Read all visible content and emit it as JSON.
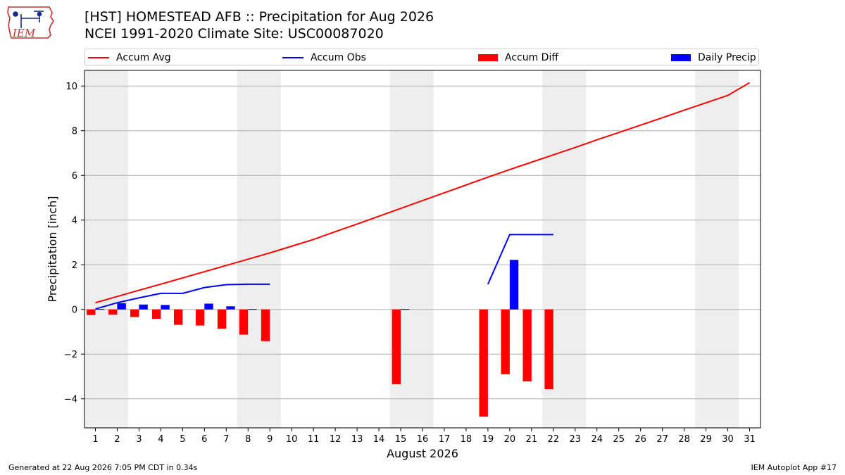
{
  "header": {
    "logo_text": "IEM",
    "title_line1": "[HST] HOMESTEAD AFB :: Precipitation for Aug 2026",
    "title_line2": "NCEI 1991-2020 Climate Site: USC00087020"
  },
  "legend": {
    "accum_avg": "Accum Avg",
    "accum_obs": "Accum Obs",
    "accum_diff": "Accum Diff",
    "daily_precip": "Daily Precip"
  },
  "footer": {
    "left": "Generated at 22 Aug 2026 7:05 PM CDT in 0.34s",
    "right": "IEM Autoplot App #17"
  },
  "colors": {
    "accum_avg": "#ff0000",
    "accum_obs": "#0000ff",
    "accum_diff": "#ff0000",
    "daily_precip": "#0000ff",
    "weekend_shade": "#eeeeee",
    "grid": "#b0b0b0"
  },
  "chart_data": {
    "type": "bar",
    "title": "[HST] HOMESTEAD AFB :: Precipitation for Aug 2026",
    "subtitle": "NCEI 1991-2020 Climate Site: USC00087020",
    "xlabel": "August 2026",
    "ylabel": "Precipitation [inch]",
    "xlim": [
      0.5,
      31.5
    ],
    "ylim": [
      -5.3,
      10.7
    ],
    "yticks": [
      -4,
      -2,
      0,
      2,
      4,
      6,
      8,
      10
    ],
    "ytick_labels": [
      "−4",
      "−2",
      "0",
      "2",
      "4",
      "6",
      "8",
      "10"
    ],
    "xticks": [
      1,
      2,
      3,
      4,
      5,
      6,
      7,
      8,
      9,
      10,
      11,
      12,
      13,
      14,
      15,
      16,
      17,
      18,
      19,
      20,
      21,
      22,
      23,
      24,
      25,
      26,
      27,
      28,
      29,
      30,
      31
    ],
    "grid": "horizontal",
    "legend_position": "top",
    "weekend_spans": [
      [
        0.5,
        2.5
      ],
      [
        7.5,
        9.5
      ],
      [
        14.5,
        16.5
      ],
      [
        21.5,
        23.5
      ],
      [
        28.5,
        30.5
      ]
    ],
    "series": [
      {
        "name": "Accum Avg",
        "kind": "line",
        "x": [
          1,
          2,
          3,
          4,
          5,
          6,
          7,
          8,
          9,
          10,
          11,
          12,
          13,
          14,
          15,
          16,
          17,
          18,
          19,
          20,
          21,
          22,
          23,
          24,
          25,
          26,
          27,
          28,
          29,
          30,
          31
        ],
        "values": [
          0.3,
          0.58,
          0.86,
          1.13,
          1.41,
          1.69,
          1.97,
          2.25,
          2.53,
          2.83,
          3.13,
          3.48,
          3.82,
          4.17,
          4.52,
          4.87,
          5.22,
          5.57,
          5.92,
          6.26,
          6.59,
          6.92,
          7.25,
          7.59,
          7.92,
          8.25,
          8.58,
          8.92,
          9.25,
          9.58,
          10.15
        ]
      },
      {
        "name": "Accum Obs",
        "kind": "line",
        "x": [
          1,
          2,
          3,
          4,
          5,
          6,
          7,
          8,
          9,
          19,
          20,
          21,
          22
        ],
        "values": [
          0.02,
          0.3,
          0.52,
          0.72,
          0.72,
          0.98,
          1.11,
          1.13,
          1.13,
          1.13,
          3.35,
          3.35,
          3.35
        ],
        "segments": [
          [
            1,
            9
          ],
          [
            19,
            22
          ]
        ]
      },
      {
        "name": "Accum Diff",
        "kind": "bar",
        "x": [
          1,
          2,
          3,
          4,
          5,
          6,
          7,
          8,
          9,
          15,
          19,
          20,
          21,
          22
        ],
        "values": [
          -0.25,
          -0.23,
          -0.34,
          -0.42,
          -0.69,
          -0.72,
          -0.86,
          -1.13,
          -1.42,
          -3.35,
          -4.8,
          -2.9,
          -3.22,
          -3.57
        ]
      },
      {
        "name": "Daily Precip",
        "kind": "bar",
        "x": [
          1,
          2,
          3,
          4,
          5,
          6,
          7,
          8,
          9,
          15,
          19,
          20,
          21,
          22
        ],
        "values": [
          0.02,
          0.28,
          0.22,
          0.2,
          0.0,
          0.26,
          0.14,
          0.02,
          0.0,
          0.02,
          0.0,
          2.22,
          0.0,
          0.0
        ]
      }
    ]
  }
}
